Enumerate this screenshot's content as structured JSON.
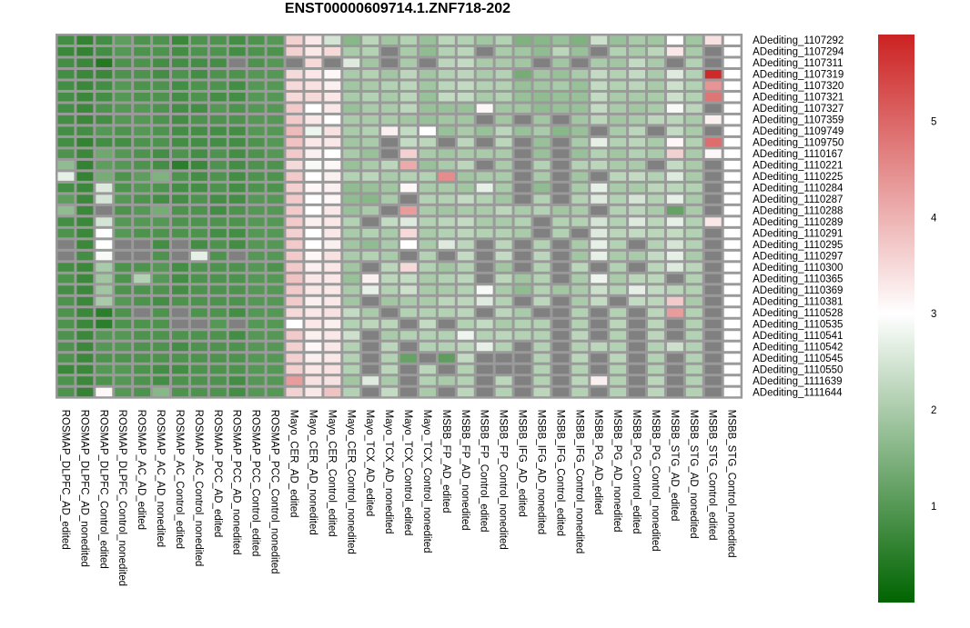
{
  "chart_data": {
    "type": "heatmap",
    "title": "ENST00000609714.1.ZNF718-202",
    "rows": [
      "ADediting_1107292",
      "ADediting_1107294",
      "ADediting_1107311",
      "ADediting_1107319",
      "ADediting_1107320",
      "ADediting_1107321",
      "ADediting_1107327",
      "ADediting_1107359",
      "ADediting_1109749",
      "ADediting_1109750",
      "ADediting_1110167",
      "ADediting_1110221",
      "ADediting_1110225",
      "ADediting_1110284",
      "ADediting_1110287",
      "ADediting_1110288",
      "ADediting_1110289",
      "ADediting_1110291",
      "ADediting_1110295",
      "ADediting_1110297",
      "ADediting_1110300",
      "ADediting_1110365",
      "ADediting_1110369",
      "ADediting_1110381",
      "ADediting_1110528",
      "ADediting_1110535",
      "ADediting_1110541",
      "ADediting_1110542",
      "ADediting_1110545",
      "ADediting_1110550",
      "ADediting_1111639",
      "ADediting_1111644"
    ],
    "columns": [
      "ROSMAP_DLPFC_AD_edited",
      "ROSMAP_DLPFC_AD_nonedited",
      "ROSMAP_DLPFC_Control_edited",
      "ROSMAP_DLPFC_Control_nonedited",
      "ROSMAP_AC_AD_edited",
      "ROSMAP_AC_AD_nonedited",
      "ROSMAP_AC_Control_edited",
      "ROSMAP_AC_Control_nonedited",
      "ROSMAP_PCC_AD_edited",
      "ROSMAP_PCC_AD_nonedited",
      "ROSMAP_PCC_Control_edited",
      "ROSMAP_PCC_Control_nonedited",
      "Mayo_CER_AD_edited",
      "Mayo_CER_AD_nonedited",
      "Mayo_CER_Control_edited",
      "Mayo_CER_Control_nonedited",
      "Mayo_TCX_AD_edited",
      "Mayo_TCX_AD_nonedited",
      "Mayo_TCX_Control_edited",
      "Mayo_TCX_Control_nonedited",
      "MSBB_FP_AD_edited",
      "MSBB_FP_AD_nonedited",
      "MSBB_FP_Control_edited",
      "MSBB_FP_Control_nonedited",
      "MSBB_IFG_AD_edited",
      "MSBB_IFG_AD_nonedited",
      "MSBB_IFG_Control_edited",
      "MSBB_IFG_Control_nonedited",
      "MSBB_PG_AD_edited",
      "MSBB_PG_AD_nonedited",
      "MSBB_PG_Control_edited",
      "MSBB_PG_Control_nonedited",
      "MSBB_STG_AD_edited",
      "MSBB_STG_AD_nonedited",
      "MSBB_STG_Control_edited",
      "MSBB_STG_Control_nonedited"
    ],
    "values": [
      [
        0.8,
        0.6,
        0.8,
        1.1,
        0.9,
        0.9,
        0.7,
        0.9,
        0.9,
        0.8,
        0.9,
        1.0,
        3.6,
        3.3,
        2.5,
        1.6,
        2.2,
        1.9,
        2.1,
        1.8,
        2.2,
        2.1,
        1.9,
        2.1,
        1.5,
        1.6,
        1.8,
        1.5,
        2.4,
        1.8,
        2.0,
        1.9,
        3.0,
        1.9,
        3.4,
        3.0
      ],
      [
        0.7,
        0.6,
        0.8,
        1.0,
        0.9,
        0.9,
        0.8,
        0.9,
        0.9,
        0.8,
        0.9,
        0.9,
        3.6,
        3.3,
        3.5,
        2.0,
        2.1,
        null,
        2.0,
        1.7,
        2.1,
        2.2,
        null,
        2.0,
        1.9,
        1.7,
        2.2,
        1.8,
        null,
        2.1,
        2.0,
        2.2,
        3.3,
        2.0,
        null,
        3.0
      ],
      [
        0.8,
        0.7,
        0.4,
        0.9,
        0.9,
        0.8,
        0.8,
        0.8,
        0.8,
        null,
        0.9,
        1.0,
        null,
        3.5,
        null,
        2.6,
        1.9,
        null,
        2.0,
        null,
        2.2,
        2.3,
        2.0,
        2.0,
        1.9,
        null,
        1.9,
        null,
        2.0,
        1.9,
        2.3,
        2.0,
        null,
        2.1,
        null,
        3.0
      ],
      [
        0.8,
        0.7,
        0.7,
        0.9,
        0.9,
        0.8,
        0.9,
        0.8,
        0.9,
        0.9,
        1.0,
        1.0,
        3.5,
        3.3,
        3.1,
        2.0,
        2.1,
        1.9,
        2.2,
        1.9,
        2.1,
        2.2,
        2.0,
        2.1,
        1.4,
        1.9,
        1.8,
        2.0,
        2.3,
        2.1,
        2.3,
        2.0,
        2.6,
        2.1,
        5.8,
        3.0
      ],
      [
        0.8,
        0.7,
        0.8,
        1.0,
        0.9,
        0.9,
        0.8,
        0.9,
        0.9,
        0.8,
        1.0,
        1.0,
        3.5,
        3.4,
        3.2,
        1.9,
        2.0,
        2.1,
        2.2,
        1.9,
        2.2,
        2.3,
        2.1,
        2.1,
        1.8,
        1.9,
        2.0,
        1.8,
        2.3,
        2.1,
        2.2,
        2.0,
        2.4,
        2.1,
        4.4,
        3.0
      ],
      [
        0.8,
        0.7,
        0.8,
        1.0,
        0.9,
        0.9,
        0.8,
        0.9,
        0.8,
        0.8,
        1.0,
        1.0,
        3.5,
        3.5,
        3.3,
        2.0,
        2.1,
        2.0,
        2.2,
        1.8,
        2.3,
        2.3,
        2.0,
        2.1,
        1.8,
        1.7,
        1.8,
        1.8,
        2.3,
        2.0,
        2.0,
        2.0,
        2.4,
        2.1,
        4.8,
        3.0
      ],
      [
        0.8,
        0.7,
        0.9,
        1.0,
        1.0,
        0.9,
        0.8,
        0.8,
        1.0,
        0.9,
        1.0,
        1.0,
        3.7,
        3.0,
        3.3,
        1.8,
        2.0,
        2.0,
        2.2,
        1.8,
        1.8,
        1.8,
        3.1,
        1.9,
        1.9,
        1.7,
        1.8,
        1.8,
        2.3,
        2.0,
        1.9,
        2.0,
        2.9,
        2.2,
        null,
        3.0
      ],
      [
        0.8,
        0.7,
        0.8,
        1.0,
        1.0,
        0.9,
        0.8,
        0.9,
        0.9,
        0.9,
        1.0,
        1.0,
        3.7,
        3.3,
        3.0,
        2.0,
        2.0,
        2.0,
        1.9,
        1.8,
        1.9,
        1.9,
        null,
        1.9,
        null,
        1.9,
        null,
        1.9,
        2.2,
        1.9,
        2.0,
        2.2,
        2.2,
        2.0,
        3.2,
        3.0
      ],
      [
        0.8,
        0.8,
        1.0,
        0.9,
        1.0,
        0.9,
        0.8,
        0.8,
        0.8,
        0.8,
        1.0,
        1.0,
        3.9,
        2.8,
        3.4,
        2.0,
        2.1,
        3.2,
        2.3,
        3.0,
        1.8,
        2.0,
        1.8,
        2.2,
        1.8,
        2.0,
        1.6,
        1.8,
        null,
        2.0,
        2.2,
        null,
        2.3,
        2.0,
        null,
        3.0
      ],
      [
        0.8,
        0.6,
        0.8,
        0.8,
        0.9,
        0.9,
        0.8,
        0.8,
        0.8,
        0.8,
        0.9,
        1.0,
        3.8,
        3.3,
        3.3,
        1.9,
        2.0,
        null,
        2.3,
        2.2,
        null,
        2.2,
        null,
        2.2,
        null,
        1.8,
        null,
        2.0,
        2.7,
        2.1,
        2.2,
        2.0,
        3.1,
        2.1,
        4.9,
        3.0
      ],
      [
        0.9,
        0.7,
        1.3,
        1.0,
        0.9,
        0.8,
        0.9,
        0.8,
        0.9,
        0.8,
        0.9,
        1.0,
        3.7,
        3.2,
        3.0,
        2.0,
        1.8,
        null,
        3.6,
        2.0,
        1.9,
        2.0,
        2.0,
        2.0,
        null,
        1.8,
        null,
        1.8,
        2.1,
        1.9,
        2.1,
        2.0,
        3.6,
        2.0,
        3.1,
        3.0
      ],
      [
        1.7,
        0.6,
        1.1,
        1.0,
        0.9,
        0.8,
        0.5,
        0.7,
        0.9,
        0.8,
        0.9,
        0.9,
        3.5,
        2.9,
        3.1,
        1.8,
        2.0,
        2.2,
        4.1,
        1.8,
        2.0,
        2.2,
        null,
        2.0,
        null,
        2.1,
        null,
        2.1,
        2.2,
        2.0,
        2.0,
        null,
        2.3,
        2.0,
        null,
        3.0
      ],
      [
        2.7,
        0.6,
        1.4,
        0.9,
        1.1,
        1.5,
        0.9,
        0.8,
        0.9,
        0.8,
        0.9,
        0.9,
        3.7,
        3.0,
        3.2,
        2.1,
        2.2,
        2.0,
        2.1,
        2.1,
        4.5,
        1.9,
        2.0,
        2.0,
        null,
        2.0,
        null,
        1.9,
        null,
        2.2,
        2.3,
        2.1,
        2.6,
        2.0,
        null,
        3.0
      ],
      [
        0.8,
        0.7,
        2.6,
        0.9,
        1.0,
        0.9,
        0.8,
        0.8,
        0.9,
        0.8,
        0.9,
        0.9,
        3.6,
        3.1,
        3.2,
        1.7,
        1.8,
        1.9,
        3.1,
        2.0,
        2.0,
        1.9,
        2.7,
        2.0,
        null,
        1.7,
        null,
        2.0,
        2.7,
        2.0,
        2.0,
        2.2,
        2.2,
        2.1,
        null,
        3.0
      ],
      [
        1.1,
        0.7,
        2.5,
        1.0,
        0.9,
        0.8,
        0.8,
        0.9,
        0.8,
        0.8,
        1.0,
        1.0,
        3.7,
        3.0,
        3.1,
        1.7,
        1.6,
        2.0,
        null,
        2.1,
        2.1,
        2.3,
        2.1,
        1.9,
        null,
        2.1,
        null,
        2.1,
        2.6,
        2.1,
        2.5,
        2.1,
        2.7,
        2.0,
        null,
        3.0
      ],
      [
        1.7,
        0.7,
        null,
        0.9,
        1.0,
        1.4,
        0.9,
        0.9,
        0.8,
        0.9,
        1.0,
        1.0,
        3.7,
        3.0,
        3.3,
        1.8,
        2.0,
        null,
        4.3,
        2.0,
        1.9,
        2.0,
        2.0,
        2.2,
        2.0,
        2.1,
        1.9,
        2.0,
        null,
        2.1,
        2.2,
        2.0,
        1.2,
        2.0,
        null,
        3.0
      ],
      [
        0.8,
        0.7,
        2.5,
        1.0,
        1.0,
        1.0,
        0.9,
        0.9,
        0.9,
        0.9,
        1.0,
        1.0,
        3.7,
        3.2,
        3.3,
        2.1,
        null,
        2.3,
        2.6,
        2.1,
        2.2,
        2.3,
        2.0,
        2.0,
        2.1,
        null,
        2.1,
        2.1,
        2.5,
        2.1,
        2.6,
        2.2,
        2.7,
        2.1,
        3.3,
        3.0
      ],
      [
        0.9,
        0.7,
        3.0,
        1.0,
        0.9,
        0.9,
        0.9,
        0.9,
        0.8,
        0.8,
        1.0,
        1.0,
        3.6,
        3.0,
        3.3,
        2.0,
        2.1,
        2.0,
        3.5,
        2.0,
        2.1,
        2.2,
        2.1,
        2.1,
        2.0,
        null,
        2.1,
        null,
        2.6,
        2.2,
        2.3,
        2.2,
        2.3,
        2.1,
        null,
        3.0
      ],
      [
        null,
        0.7,
        3.0,
        null,
        null,
        0.8,
        null,
        0.8,
        0.9,
        0.8,
        1.0,
        1.0,
        3.7,
        3.0,
        3.2,
        1.9,
        1.7,
        2.0,
        3.0,
        2.0,
        2.6,
        2.2,
        null,
        2.2,
        null,
        2.1,
        null,
        2.0,
        2.7,
        2.1,
        null,
        2.1,
        2.5,
        2.1,
        null,
        3.0
      ],
      [
        null,
        0.8,
        2.9,
        null,
        null,
        0.9,
        null,
        2.7,
        0.9,
        null,
        1.0,
        1.0,
        3.7,
        3.1,
        3.4,
        2.0,
        2.1,
        2.0,
        null,
        2.1,
        null,
        2.3,
        null,
        2.3,
        null,
        2.2,
        null,
        1.9,
        2.7,
        2.0,
        2.0,
        2.3,
        2.7,
        2.0,
        null,
        3.0
      ],
      [
        0.8,
        0.7,
        2.0,
        0.9,
        0.9,
        1.0,
        0.8,
        0.9,
        0.9,
        0.9,
        1.0,
        0.9,
        3.7,
        3.2,
        3.3,
        1.9,
        null,
        2.2,
        3.5,
        2.1,
        1.9,
        2.1,
        null,
        1.9,
        null,
        2.1,
        null,
        2.2,
        null,
        2.1,
        null,
        2.2,
        2.6,
        2.2,
        null,
        3.0
      ],
      [
        0.9,
        0.7,
        1.9,
        0.9,
        2.1,
        1.0,
        0.8,
        0.9,
        0.9,
        0.9,
        1.0,
        1.0,
        3.8,
        3.3,
        3.3,
        1.8,
        3.2,
        2.2,
        2.3,
        2.0,
        2.1,
        2.2,
        null,
        2.2,
        1.9,
        2.1,
        null,
        2.0,
        2.8,
        2.0,
        2.2,
        2.2,
        null,
        2.1,
        null,
        3.0
      ],
      [
        0.8,
        0.7,
        1.9,
        0.9,
        0.9,
        0.9,
        0.8,
        0.9,
        0.9,
        0.9,
        1.0,
        1.0,
        3.7,
        3.3,
        3.3,
        2.0,
        2.7,
        2.1,
        2.4,
        2.0,
        2.0,
        2.1,
        2.9,
        2.0,
        1.7,
        2.1,
        1.9,
        2.0,
        2.4,
        2.1,
        2.7,
        2.3,
        2.2,
        2.1,
        null,
        3.0
      ],
      [
        0.9,
        0.7,
        2.0,
        1.0,
        0.9,
        0.8,
        0.9,
        0.9,
        0.9,
        0.9,
        1.0,
        1.0,
        3.7,
        3.2,
        3.3,
        1.9,
        null,
        1.9,
        2.0,
        2.0,
        2.2,
        2.2,
        2.6,
        2.1,
        null,
        2.2,
        null,
        2.0,
        2.3,
        null,
        2.3,
        2.2,
        3.7,
        2.0,
        null,
        3.0
      ],
      [
        0.9,
        0.7,
        0.5,
        0.9,
        null,
        0.9,
        null,
        0.9,
        0.9,
        0.8,
        1.0,
        1.0,
        3.5,
        3.3,
        3.4,
        2.3,
        2.0,
        null,
        2.1,
        2.1,
        2.1,
        2.2,
        null,
        2.2,
        2.0,
        null,
        null,
        2.1,
        null,
        2.1,
        null,
        2.2,
        4.3,
        2.1,
        null,
        3.0
      ],
      [
        0.9,
        0.7,
        0.5,
        0.9,
        0.9,
        0.9,
        null,
        null,
        1.0,
        null,
        1.0,
        1.0,
        3.0,
        3.3,
        3.2,
        2.1,
        2.2,
        2.2,
        null,
        2.3,
        null,
        2.1,
        2.3,
        2.0,
        2.1,
        2.1,
        null,
        2.1,
        null,
        2.2,
        null,
        2.2,
        null,
        2.1,
        null,
        3.0
      ],
      [
        0.9,
        0.7,
        1.0,
        1.0,
        0.9,
        0.9,
        0.9,
        0.9,
        0.9,
        0.8,
        1.0,
        1.0,
        3.7,
        3.2,
        3.3,
        2.4,
        null,
        2.0,
        2.1,
        2.1,
        2.1,
        2.8,
        2.1,
        2.2,
        2.1,
        2.1,
        null,
        2.2,
        null,
        2.1,
        null,
        2.2,
        null,
        2.1,
        null,
        3.0
      ],
      [
        0.9,
        0.7,
        1.0,
        1.0,
        0.9,
        0.9,
        0.8,
        0.9,
        0.9,
        0.9,
        1.0,
        1.0,
        3.6,
        3.1,
        3.3,
        2.1,
        null,
        2.2,
        null,
        2.1,
        2.1,
        2.2,
        2.7,
        2.1,
        null,
        2.1,
        null,
        2.1,
        2.2,
        2.1,
        null,
        2.1,
        2.4,
        2.1,
        null,
        3.0
      ],
      [
        0.9,
        0.7,
        0.9,
        0.9,
        0.9,
        0.9,
        0.9,
        0.9,
        0.9,
        0.9,
        1.0,
        1.0,
        3.6,
        3.2,
        3.3,
        2.1,
        null,
        2.1,
        1.2,
        null,
        1.1,
        2.3,
        null,
        null,
        null,
        2.1,
        null,
        2.2,
        null,
        2.2,
        null,
        2.1,
        null,
        2.1,
        null,
        3.0
      ],
      [
        0.7,
        0.7,
        1.0,
        1.0,
        0.9,
        0.8,
        0.8,
        0.9,
        0.9,
        0.9,
        1.0,
        1.0,
        3.6,
        3.3,
        3.4,
        2.1,
        null,
        2.2,
        null,
        2.2,
        null,
        2.1,
        null,
        null,
        null,
        2.1,
        null,
        2.1,
        null,
        2.1,
        null,
        2.1,
        null,
        2.1,
        null,
        3.0
      ],
      [
        0.9,
        0.7,
        0.9,
        1.0,
        0.9,
        0.8,
        0.9,
        0.9,
        0.9,
        0.8,
        1.0,
        1.0,
        4.3,
        3.4,
        3.4,
        1.9,
        2.6,
        2.0,
        null,
        2.1,
        2.0,
        2.1,
        null,
        2.2,
        null,
        2.1,
        null,
        2.2,
        3.2,
        2.1,
        null,
        2.2,
        null,
        2.1,
        null,
        3.0
      ],
      [
        0.9,
        0.6,
        3.1,
        1.0,
        0.9,
        1.6,
        0.9,
        0.9,
        0.9,
        0.8,
        1.0,
        1.0,
        3.6,
        3.3,
        3.8,
        2.1,
        null,
        2.3,
        null,
        2.0,
        null,
        2.2,
        null,
        2.1,
        null,
        2.2,
        null,
        2.1,
        null,
        2.1,
        null,
        2.2,
        null,
        2.1,
        null,
        3.0
      ]
    ],
    "na_color": "#808080",
    "color_scale": {
      "min": 0,
      "mid": 3,
      "max": 5.9,
      "low_color": "#006400",
      "mid_color": "#ffffff",
      "high_color": "#cc2222"
    },
    "legend": {
      "position": "right",
      "ticks": [
        1,
        2,
        3,
        4,
        5
      ]
    }
  }
}
